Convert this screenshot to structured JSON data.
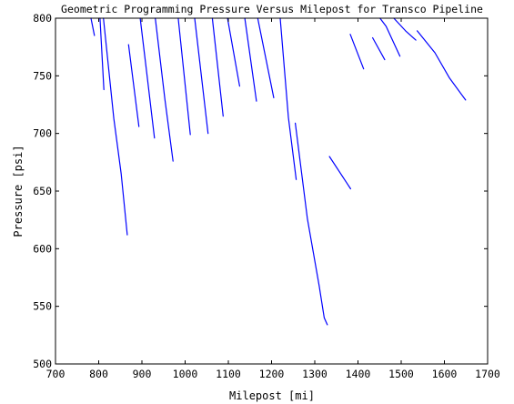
{
  "chart_data": {
    "type": "line",
    "title": "Geometric Programming Pressure Versus Milepost for Transco Pipeline",
    "xlabel": "Milepost [mi]",
    "ylabel": "Pressure [psi]",
    "xlim": [
      700,
      1700
    ],
    "ylim": [
      500,
      800
    ],
    "xticks": [
      700,
      800,
      900,
      1000,
      1100,
      1200,
      1300,
      1400,
      1500,
      1600,
      1700
    ],
    "yticks": [
      500,
      550,
      600,
      650,
      700,
      750,
      800
    ],
    "xtick_labels": [
      "700",
      "800",
      "900",
      "1000",
      "1100",
      "1200",
      "1300",
      "1400",
      "1500",
      "1600",
      "1700"
    ],
    "ytick_labels": [
      "500",
      "550",
      "600",
      "650",
      "700",
      "750",
      "800"
    ],
    "grid": false,
    "legend": "none",
    "line_color": "#0000ff",
    "segments": [
      {
        "x": [
          782,
          790
        ],
        "y": [
          800,
          785
        ]
      },
      {
        "x": [
          803,
          812
        ],
        "y": [
          800,
          738
        ]
      },
      {
        "x": [
          811,
          835,
          852,
          866
        ],
        "y": [
          800,
          713,
          665,
          612
        ]
      },
      {
        "x": [
          869,
          893
        ],
        "y": [
          777,
          706
        ]
      },
      {
        "x": [
          896,
          912,
          929
        ],
        "y": [
          800,
          750,
          696
        ]
      },
      {
        "x": [
          931,
          953,
          972
        ],
        "y": [
          800,
          730,
          676
        ]
      },
      {
        "x": [
          984,
          1012
        ],
        "y": [
          800,
          699
        ]
      },
      {
        "x": [
          1022,
          1053
        ],
        "y": [
          800,
          700
        ]
      },
      {
        "x": [
          1063,
          1088
        ],
        "y": [
          800,
          715
        ]
      },
      {
        "x": [
          1098,
          1126
        ],
        "y": [
          800,
          741
        ]
      },
      {
        "x": [
          1138,
          1165
        ],
        "y": [
          800,
          728
        ]
      },
      {
        "x": [
          1168,
          1205
        ],
        "y": [
          800,
          731
        ]
      },
      {
        "x": [
          1220,
          1239,
          1257
        ],
        "y": [
          800,
          714,
          660
        ]
      },
      {
        "x": [
          1255,
          1283,
          1310,
          1322,
          1329
        ],
        "y": [
          709,
          626,
          568,
          540,
          534
        ]
      },
      {
        "x": [
          1334,
          1383
        ],
        "y": [
          680,
          652
        ]
      },
      {
        "x": [
          1382,
          1413
        ],
        "y": [
          786,
          756
        ]
      },
      {
        "x": [
          1434,
          1462
        ],
        "y": [
          783,
          764
        ]
      },
      {
        "x": [
          1451,
          1465,
          1497
        ],
        "y": [
          800,
          793,
          767
        ]
      },
      {
        "x": [
          1483,
          1510,
          1534
        ],
        "y": [
          800,
          789,
          781
        ]
      },
      {
        "x": [
          1537,
          1578,
          1612,
          1649
        ],
        "y": [
          789,
          770,
          748,
          729
        ]
      }
    ]
  }
}
